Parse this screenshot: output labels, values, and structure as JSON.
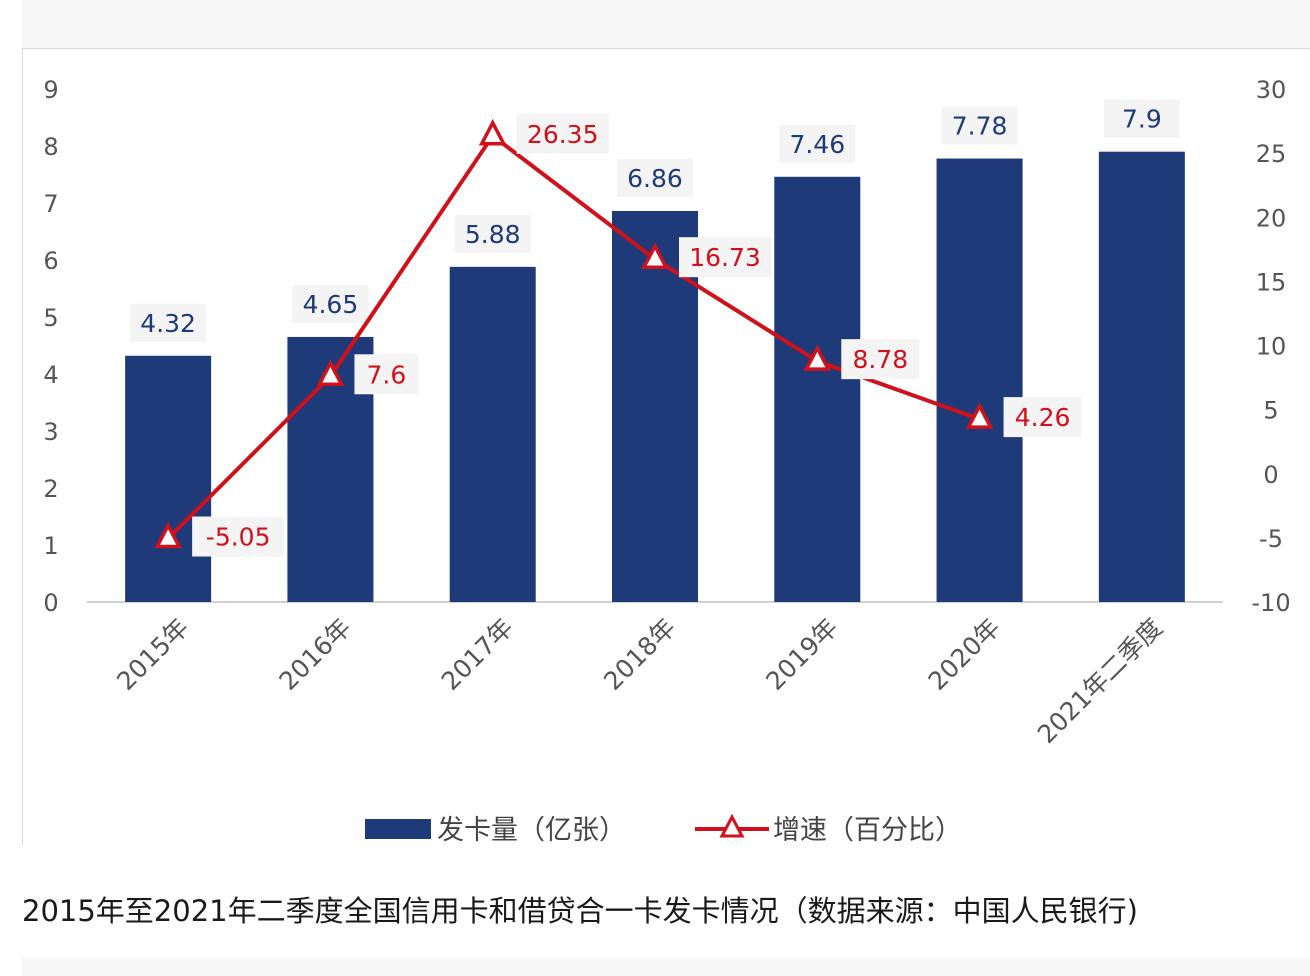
{
  "caption": "2015年至2021年二季度全国信用卡和借贷合一卡发卡情况（数据来源：中国人民银行)",
  "colors": {
    "bar": "#1f3a78",
    "line": "#d0111b",
    "bar_label": "#1f3a78",
    "line_label": "#d0111b",
    "axis_text": "#555555"
  },
  "chart_data": {
    "type": "bar",
    "categories": [
      "2015年",
      "2016年",
      "2017年",
      "2018年",
      "2019年",
      "2020年",
      "2021年二季度"
    ],
    "series": [
      {
        "name": "发卡量（亿张）",
        "type": "bar",
        "axis": "left",
        "values": [
          4.32,
          4.65,
          5.88,
          6.86,
          7.46,
          7.78,
          7.9
        ],
        "labels": [
          "4.32",
          "4.65",
          "5.88",
          "6.86",
          "7.46",
          "7.78",
          "7.9"
        ]
      },
      {
        "name": "增速（百分比）",
        "type": "line",
        "axis": "right",
        "marker": "triangle-open",
        "values": [
          -5.05,
          7.6,
          26.35,
          16.73,
          8.78,
          4.26,
          null
        ],
        "labels": [
          "-5.05",
          "7.6",
          "26.35",
          "16.73",
          "8.78",
          "4.26",
          ""
        ]
      }
    ],
    "y_left": {
      "ylim": [
        0,
        9
      ],
      "ticks": [
        "0",
        "1",
        "2",
        "3",
        "4",
        "5",
        "6",
        "7",
        "8",
        "9"
      ]
    },
    "y_right": {
      "ylim": [
        -10,
        30
      ],
      "ticks": [
        "-10",
        "-5",
        "0",
        "5",
        "10",
        "15",
        "20",
        "25",
        "30"
      ]
    },
    "legend_position": "bottom",
    "grid": false
  }
}
